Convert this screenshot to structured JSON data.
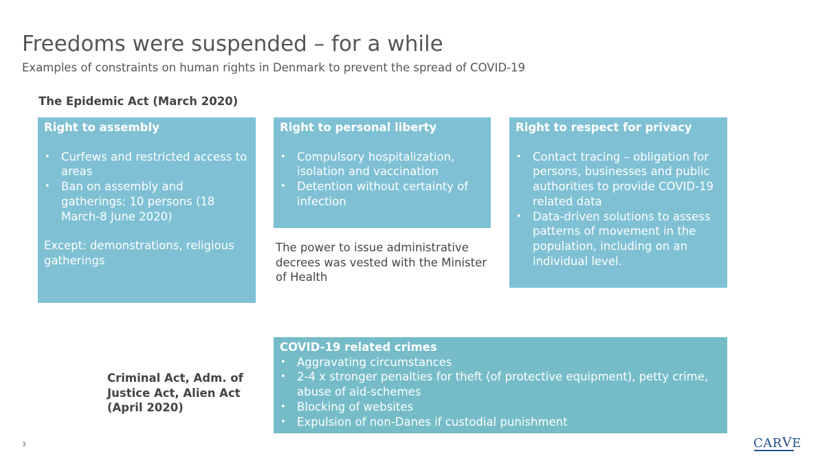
{
  "slide": {
    "title": "Freedoms were suspended – for a while",
    "subtitle": "Examples of constraints on human rights in Denmark to prevent the spread of COVID-19",
    "section_label": "The Epidemic Act (March 2020)",
    "page_number": "3",
    "logo": {
      "part1": "CAR",
      "v": "V",
      "part2": "E"
    }
  },
  "box_assembly": {
    "heading": "Right to assembly",
    "bullets": [
      "Curfews and restricted access to areas",
      "Ban on assembly and gatherings: 10 persons (18 March-8 June 2020)"
    ],
    "note": "Except: demonstrations, religious gatherings"
  },
  "box_liberty": {
    "heading": "Right to personal liberty",
    "bullets": [
      "Compulsory hospitalization, isolation and vaccination",
      "Detention without certainty of infection"
    ]
  },
  "decree_text": "The power to issue administrative decrees was vested with the Minister of Health",
  "box_privacy": {
    "heading": "Right to respect for privacy",
    "bullets": [
      "Contact tracing – obligation for persons, businesses and public authorities to provide COVID-19 related data",
      "Data-driven solutions to assess patterns of movement in the population, including on an individual level."
    ]
  },
  "criminal_label": "Criminal Act, Adm. of Justice Act, Alien Act (April 2020)",
  "box_crimes": {
    "heading": "COVID-19 related crimes",
    "bullets": [
      "Aggravating circumstances",
      "2-4 x stronger penalties for theft (of protective equipment), petty crime, abuse of aid-schemes",
      "Blocking of websites",
      "Expulsion of non-Danes if custodial punishment"
    ]
  },
  "colors": {
    "box_fill": "#7fc0d4",
    "crimes_fill": "#75bcc8",
    "text_gray": "#555555",
    "logo_blue": "#1f4e8c"
  }
}
